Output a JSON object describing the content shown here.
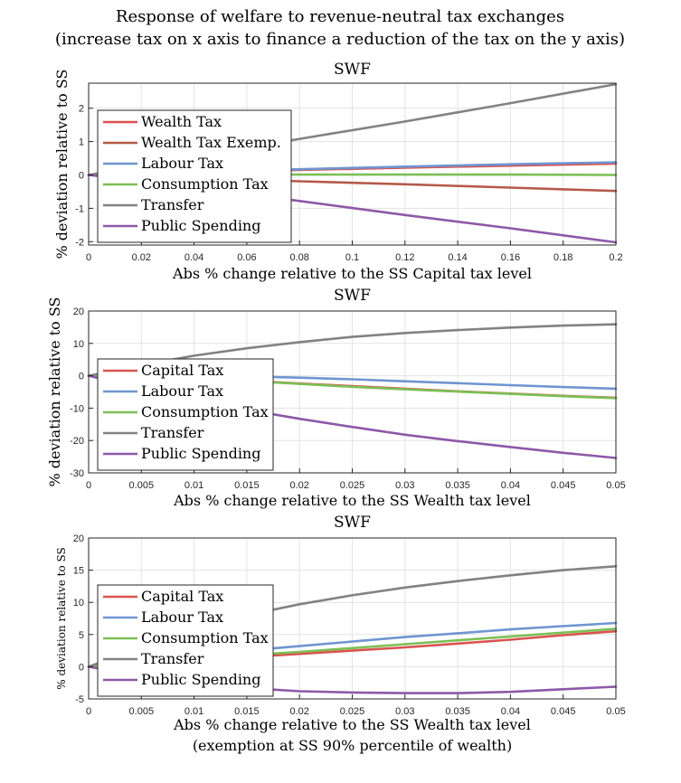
{
  "figure": {
    "title_line1": "Response of welfare to revenue-neutral tax exchanges",
    "title_line2": "(increase tax on x axis to finance a reduction of the tax on the y axis)"
  },
  "colors": {
    "red": "#d9534f",
    "darkred": "#b55a4b",
    "blue": "#6f95d1",
    "green": "#7cbf55",
    "gray": "#828282",
    "purple": "#8e58a8"
  },
  "chart_data": [
    {
      "type": "line",
      "title": "SWF",
      "xlabel": "Abs % change relative to the SS Capital tax level",
      "xlabel2": "",
      "ylabel": "% deviation relative to SS",
      "xlim": [
        0,
        0.2
      ],
      "ylim": [
        -2.1,
        2.75
      ],
      "xticks": [
        0,
        0.02,
        0.04,
        0.06,
        0.08,
        0.1,
        0.12,
        0.14,
        0.16,
        0.18,
        0.2
      ],
      "xtick_labels": [
        "0",
        "0.02",
        "0.04",
        "0.06",
        "0.08",
        "0.1",
        "0.12",
        "0.14",
        "0.16",
        "0.18",
        "0.2"
      ],
      "yticks": [
        -2,
        -1,
        0,
        1,
        2
      ],
      "ytick_labels": [
        "-2",
        "-1",
        "0",
        "1",
        "2"
      ],
      "grid": true,
      "legend_position": "left",
      "x": [
        0,
        0.04,
        0.08,
        0.12,
        0.16,
        0.2
      ],
      "series": [
        {
          "name": "Wealth Tax",
          "color": "red",
          "values": [
            0,
            0.08,
            0.15,
            0.22,
            0.28,
            0.34
          ]
        },
        {
          "name": "Wealth Tax Exemp.",
          "color": "darkred",
          "values": [
            0,
            -0.09,
            -0.19,
            -0.28,
            -0.38,
            -0.48
          ]
        },
        {
          "name": "Labour Tax",
          "color": "blue",
          "values": [
            0,
            0.09,
            0.17,
            0.25,
            0.32,
            0.38
          ]
        },
        {
          "name": "Consumption Tax",
          "color": "green",
          "values": [
            0,
            0.01,
            0.01,
            0.01,
            0.01,
            0.0
          ]
        },
        {
          "name": "Transfer",
          "color": "gray",
          "values": [
            0,
            0.55,
            1.08,
            1.6,
            2.15,
            2.72
          ]
        },
        {
          "name": "Public Spending",
          "color": "purple",
          "values": [
            0,
            -0.38,
            -0.78,
            -1.2,
            -1.6,
            -2.02
          ]
        }
      ]
    },
    {
      "type": "line",
      "title": "SWF",
      "xlabel": "Abs % change relative to the SS Wealth tax level",
      "xlabel2": "",
      "ylabel": "% deviation relative to SS",
      "xlim": [
        0,
        0.05
      ],
      "ylim": [
        -30,
        20
      ],
      "xticks": [
        0,
        0.005,
        0.01,
        0.015,
        0.02,
        0.025,
        0.03,
        0.035,
        0.04,
        0.045,
        0.05
      ],
      "xtick_labels": [
        "0",
        "0.005",
        "0.01",
        "0.015",
        "0.02",
        "0.025",
        "0.03",
        "0.035",
        "0.04",
        "0.045",
        "0.05"
      ],
      "yticks": [
        -30,
        -20,
        -10,
        0,
        10,
        20
      ],
      "ytick_labels": [
        "-30",
        "-20",
        "-10",
        "0",
        "10",
        "20"
      ],
      "grid": true,
      "legend_position": "left",
      "x": [
        0,
        0.005,
        0.01,
        0.015,
        0.02,
        0.025,
        0.03,
        0.035,
        0.04,
        0.045,
        0.05
      ],
      "series": [
        {
          "name": "Capital Tax",
          "color": "red",
          "values": [
            0,
            -0.5,
            -1.0,
            -1.5,
            -2.4,
            -3.2,
            -4.0,
            -4.8,
            -5.5,
            -6.2,
            -6.8
          ]
        },
        {
          "name": "Labour Tax",
          "color": "blue",
          "values": [
            0,
            0.1,
            0.1,
            -0.2,
            -0.6,
            -1.1,
            -1.7,
            -2.3,
            -2.9,
            -3.5,
            -4.0
          ]
        },
        {
          "name": "Consumption Tax",
          "color": "green",
          "values": [
            0,
            -0.5,
            -1.0,
            -1.6,
            -2.5,
            -3.4,
            -4.2,
            -4.9,
            -5.6,
            -6.3,
            -6.9
          ]
        },
        {
          "name": "Transfer",
          "color": "gray",
          "values": [
            0,
            3.3,
            6.2,
            8.5,
            10.4,
            12.0,
            13.2,
            14.1,
            14.9,
            15.5,
            15.9
          ]
        },
        {
          "name": "Public Spending",
          "color": "purple",
          "values": [
            0,
            -3.8,
            -7.3,
            -10.5,
            -13.3,
            -15.8,
            -18.2,
            -20.2,
            -22.0,
            -23.8,
            -25.4
          ]
        }
      ]
    },
    {
      "type": "line",
      "title": "SWF",
      "xlabel": "Abs % change relative to the SS Wealth tax level",
      "xlabel2": "(exemption at SS 90% percentile of wealth)",
      "ylabel": "% deviation relative to SS",
      "xlim": [
        0,
        0.05
      ],
      "ylim": [
        -5,
        20
      ],
      "xticks": [
        0,
        0.005,
        0.01,
        0.015,
        0.02,
        0.025,
        0.03,
        0.035,
        0.04,
        0.045,
        0.05
      ],
      "xtick_labels": [
        "0",
        "0.005",
        "0.01",
        "0.015",
        "0.02",
        "0.025",
        "0.03",
        "0.035",
        "0.04",
        "0.045",
        "0.05"
      ],
      "yticks": [
        -5,
        0,
        5,
        10,
        15,
        20
      ],
      "ytick_labels": [
        "-5",
        "0",
        "5",
        "10",
        "15",
        "20"
      ],
      "grid": true,
      "legend_position": "left",
      "x": [
        0,
        0.005,
        0.01,
        0.015,
        0.02,
        0.025,
        0.03,
        0.035,
        0.04,
        0.045,
        0.05
      ],
      "series": [
        {
          "name": "Capital Tax",
          "color": "red",
          "values": [
            0,
            0.5,
            1.0,
            1.5,
            2.0,
            2.5,
            3.0,
            3.6,
            4.2,
            4.9,
            5.5
          ]
        },
        {
          "name": "Labour Tax",
          "color": "blue",
          "values": [
            0,
            0.9,
            1.7,
            2.5,
            3.2,
            3.9,
            4.6,
            5.2,
            5.8,
            6.3,
            6.8
          ]
        },
        {
          "name": "Consumption Tax",
          "color": "green",
          "values": [
            0,
            0.6,
            1.2,
            1.8,
            2.3,
            2.9,
            3.5,
            4.1,
            4.7,
            5.3,
            5.9
          ]
        },
        {
          "name": "Transfer",
          "color": "gray",
          "values": [
            0,
            3.0,
            5.8,
            8.0,
            9.7,
            11.1,
            12.3,
            13.3,
            14.2,
            15.0,
            15.6
          ]
        },
        {
          "name": "Public Spending",
          "color": "purple",
          "values": [
            0,
            -1.5,
            -2.6,
            -3.3,
            -3.8,
            -4.0,
            -4.1,
            -4.1,
            -3.9,
            -3.5,
            -3.1
          ]
        }
      ]
    }
  ]
}
